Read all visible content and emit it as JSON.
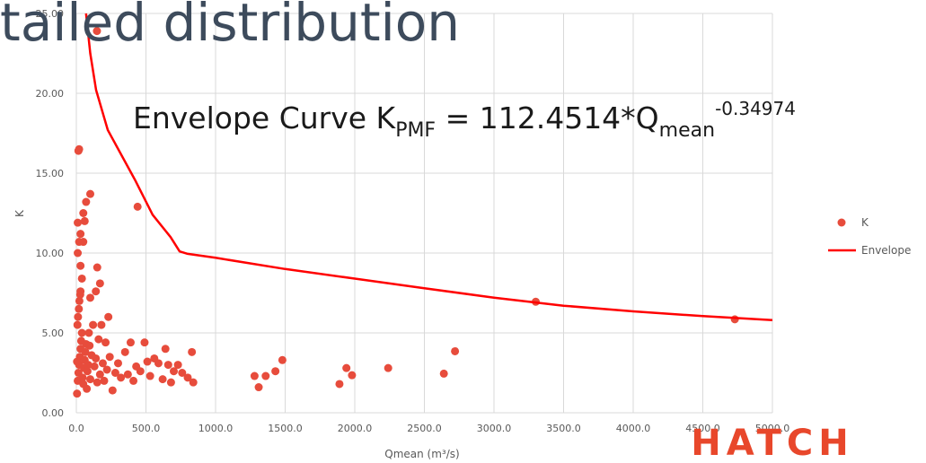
{
  "chart_data": {
    "type": "scatter",
    "title": "tailed distribution",
    "annotation": {
      "parts": [
        {
          "text": "Envelope Curve K",
          "style": "base"
        },
        {
          "text": "PMF",
          "style": "sub"
        },
        {
          "text": " = 112.4514*Q",
          "style": "base"
        },
        {
          "text": "mean",
          "style": "sub"
        },
        {
          "text": "-0.34974",
          "style": "sup"
        }
      ]
    },
    "x_label": "Qmean (m³/s)",
    "y_label": "K",
    "logo": "HATCH",
    "xlim": [
      0,
      5000
    ],
    "xticks": [
      {
        "value": 0,
        "label": "0.0"
      },
      {
        "value": 500,
        "label": "500.0"
      },
      {
        "value": 1000,
        "label": "1000.0"
      },
      {
        "value": 1500,
        "label": "1500.0"
      },
      {
        "value": 2000,
        "label": "2000.0"
      },
      {
        "value": 2500,
        "label": "2500.0"
      },
      {
        "value": 3000,
        "label": "3000.0"
      },
      {
        "value": 3500,
        "label": "3500.0"
      },
      {
        "value": 4000,
        "label": "4000.0"
      },
      {
        "value": 4500,
        "label": "4500.0"
      },
      {
        "value": 5000,
        "label": "5000.0"
      }
    ],
    "ylim": [
      0,
      25
    ],
    "yticks": [
      {
        "value": 0,
        "label": "0.00"
      },
      {
        "value": 5,
        "label": "5.00"
      },
      {
        "value": 10,
        "label": "10.00"
      },
      {
        "value": 15,
        "label": "15.00"
      },
      {
        "value": 20,
        "label": "20.00"
      },
      {
        "value": 25,
        "label": "25.00"
      }
    ],
    "grid": true,
    "legend": "right",
    "series": [
      {
        "name": "K",
        "type": "scatter",
        "color": "#e74c3c",
        "x": [
          148,
          20,
          15,
          440,
          100,
          70,
          50,
          10,
          60,
          30,
          20,
          50,
          10,
          150,
          30,
          40,
          170,
          140,
          30,
          100,
          230,
          3300,
          4730,
          1280,
          1310,
          1360,
          1430,
          1480,
          1890,
          1940,
          1980,
          2240,
          2640,
          2720,
          5,
          10,
          15,
          20,
          25,
          30,
          35,
          40,
          8,
          12,
          18,
          22,
          28,
          5,
          45,
          50,
          55,
          60,
          65,
          70,
          75,
          80,
          85,
          90,
          95,
          100,
          110,
          120,
          130,
          140,
          150,
          160,
          170,
          180,
          190,
          200,
          210,
          220,
          240,
          260,
          280,
          300,
          320,
          350,
          370,
          390,
          410,
          430,
          460,
          490,
          510,
          530,
          560,
          590,
          620,
          640,
          660,
          680,
          700,
          730,
          760,
          800,
          830,
          840
        ],
        "values": [
          23.9,
          16.5,
          16.4,
          12.9,
          13.7,
          13.2,
          12.5,
          11.9,
          12.0,
          11.2,
          10.7,
          10.7,
          10.0,
          9.1,
          9.2,
          8.4,
          8.1,
          7.6,
          7.6,
          7.2,
          6.0,
          6.95,
          5.85,
          2.3,
          1.6,
          2.3,
          2.6,
          3.3,
          1.8,
          2.8,
          2.35,
          2.8,
          2.45,
          3.85,
          1.2,
          2.0,
          2.5,
          3.0,
          3.5,
          4.0,
          4.5,
          5.0,
          5.5,
          6.0,
          6.5,
          7.0,
          7.4,
          3.2,
          2.2,
          1.8,
          2.8,
          3.3,
          3.8,
          4.3,
          1.5,
          2.6,
          3.0,
          5.0,
          4.2,
          2.1,
          3.6,
          5.5,
          2.9,
          3.4,
          1.9,
          4.6,
          2.4,
          5.5,
          3.1,
          2.0,
          4.4,
          2.7,
          3.5,
          1.4,
          2.5,
          3.1,
          2.2,
          3.8,
          2.4,
          4.4,
          2.0,
          2.9,
          2.6,
          4.4,
          3.2,
          2.3,
          3.4,
          3.1,
          2.1,
          4.0,
          3.0,
          1.9,
          2.6,
          3.0,
          2.5,
          2.2,
          3.8,
          1.9
        ]
      },
      {
        "name": "Envelope",
        "type": "line",
        "color": "#ff0000",
        "x": [
          70,
          100,
          142,
          226,
          420,
          548,
          677,
          742,
          800,
          1000,
          1500,
          2000,
          2500,
          3000,
          3500,
          4000,
          4500,
          5000
        ],
        "values": [
          25,
          22.5,
          20.2,
          17.7,
          14.6,
          12.4,
          11.0,
          10.1,
          9.95,
          9.7,
          9.0,
          8.4,
          7.8,
          7.2,
          6.7,
          6.35,
          6.05,
          5.8
        ]
      }
    ]
  }
}
